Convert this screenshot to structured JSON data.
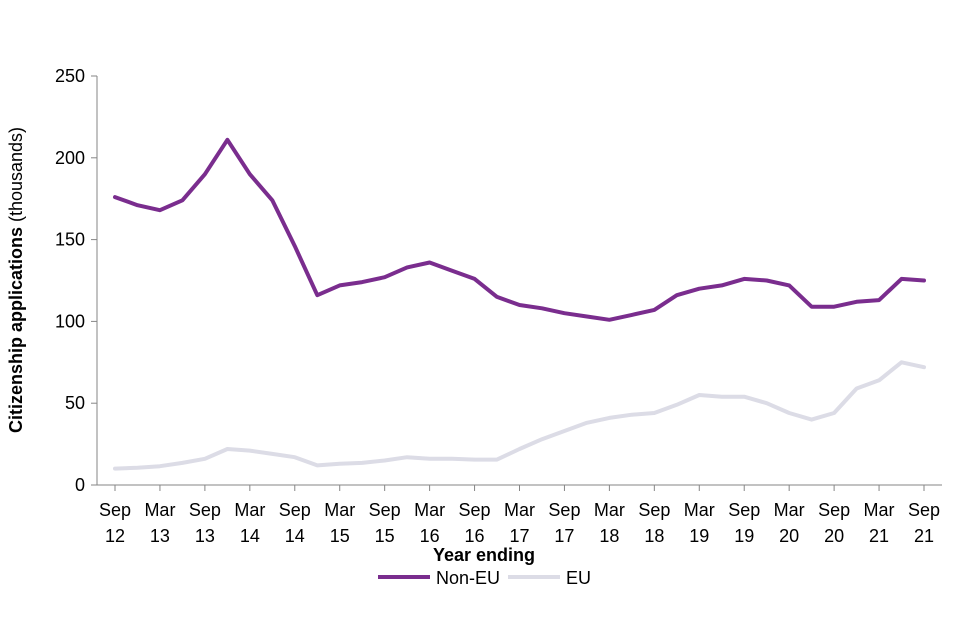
{
  "chart_data": {
    "type": "line",
    "ylabel_bold": "Citizenship applications",
    "ylabel_unit": "(thousands)",
    "xlabel": "Year ending",
    "ylim": [
      0,
      250
    ],
    "yticks": [
      "0",
      "50",
      "100",
      "150",
      "200",
      "250"
    ],
    "x_tick_labels": [
      {
        "month": "Sep",
        "year": "12"
      },
      {
        "month": "Mar",
        "year": "13"
      },
      {
        "month": "Sep",
        "year": "13"
      },
      {
        "month": "Mar",
        "year": "14"
      },
      {
        "month": "Sep",
        "year": "14"
      },
      {
        "month": "Mar",
        "year": "15"
      },
      {
        "month": "Sep",
        "year": "15"
      },
      {
        "month": "Mar",
        "year": "16"
      },
      {
        "month": "Sep",
        "year": "16"
      },
      {
        "month": "Mar",
        "year": "17"
      },
      {
        "month": "Sep",
        "year": "17"
      },
      {
        "month": "Mar",
        "year": "18"
      },
      {
        "month": "Sep",
        "year": "18"
      },
      {
        "month": "Mar",
        "year": "19"
      },
      {
        "month": "Sep",
        "year": "19"
      },
      {
        "month": "Mar",
        "year": "20"
      },
      {
        "month": "Sep",
        "year": "20"
      },
      {
        "month": "Mar",
        "year": "21"
      },
      {
        "month": "Sep",
        "year": "21"
      }
    ],
    "x": [
      "Sep 12",
      "Dec 12",
      "Mar 13",
      "Jun 13",
      "Sep 13",
      "Dec 13",
      "Mar 14",
      "Jun 14",
      "Sep 14",
      "Dec 14",
      "Mar 15",
      "Jun 15",
      "Sep 15",
      "Dec 15",
      "Mar 16",
      "Jun 16",
      "Sep 16",
      "Dec 16",
      "Mar 17",
      "Jun 17",
      "Sep 17",
      "Dec 17",
      "Mar 18",
      "Jun 18",
      "Sep 18",
      "Dec 18",
      "Mar 19",
      "Jun 19",
      "Sep 19",
      "Dec 19",
      "Mar 20",
      "Jun 20",
      "Sep 20",
      "Dec 20",
      "Mar 21",
      "Jun 21",
      "Sep 21"
    ],
    "series": [
      {
        "name": "Non-EU",
        "color": "#7a2d8e",
        "values": [
          176,
          171,
          168,
          174,
          190,
          211,
          190,
          174,
          146,
          116,
          122,
          124,
          127,
          133,
          136,
          131,
          126,
          115,
          110,
          108,
          105,
          103,
          101,
          104,
          107,
          116,
          120,
          122,
          126,
          125,
          122,
          109,
          109,
          112,
          113,
          126,
          125
        ]
      },
      {
        "name": "EU",
        "color": "#dcdce6",
        "values": [
          10,
          10.5,
          11.5,
          13.5,
          16,
          22,
          21,
          19,
          17,
          12,
          13,
          13.5,
          15,
          17,
          16,
          16,
          15.5,
          15.5,
          22,
          28,
          33,
          38,
          41,
          43,
          44,
          49,
          55,
          54,
          54,
          50,
          44,
          40,
          44,
          59,
          64,
          75,
          72
        ]
      }
    ],
    "legend_position": "bottom-center",
    "grid": false
  }
}
